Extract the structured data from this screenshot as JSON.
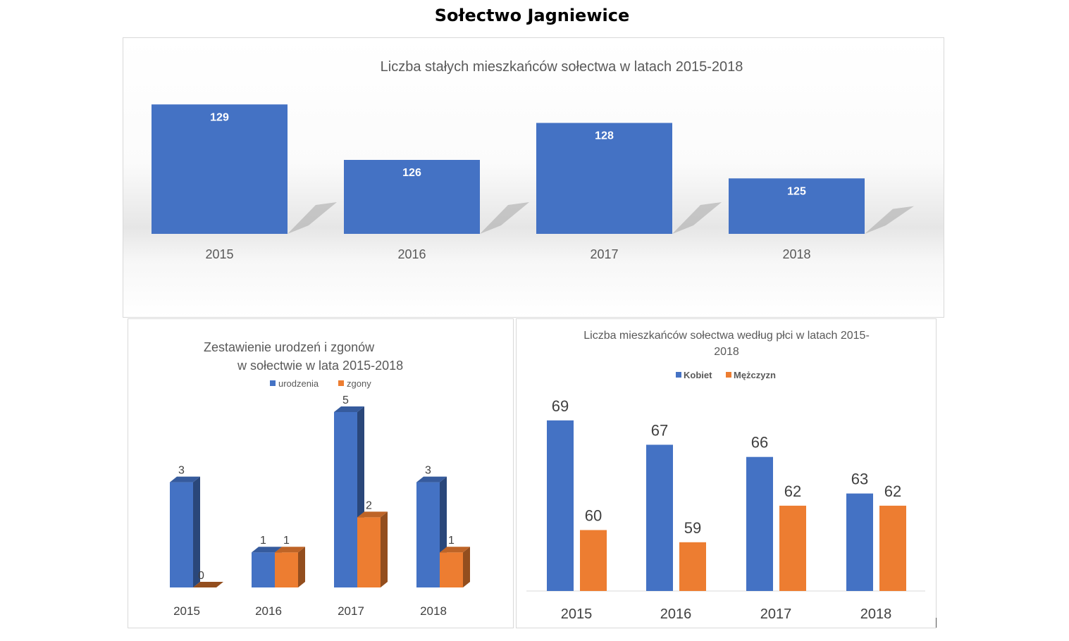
{
  "page": {
    "title": "Sołectwo Jagniewice"
  },
  "chart_data": [
    {
      "type": "bar",
      "title": "Liczba stałych mieszkańców sołectwa   w latach 2015-2018",
      "categories": [
        "2015",
        "2016",
        "2017",
        "2018"
      ],
      "values": [
        129,
        126,
        128,
        125
      ],
      "ylim": [
        122,
        130
      ],
      "grid": false,
      "colors": {
        "bar": "#4472c4",
        "shadow": "#a6a6a6"
      }
    },
    {
      "type": "bar",
      "title_lines": [
        "Zestawienie urodzeń i zgonów",
        "w sołectwie  w lata 2015-2018"
      ],
      "categories": [
        "2015",
        "2016",
        "2017",
        "2018"
      ],
      "series": [
        {
          "name": "urodzenia",
          "values": [
            3,
            1,
            5,
            3
          ],
          "color": "#4472c4"
        },
        {
          "name": "zgony",
          "values": [
            0,
            1,
            2,
            1
          ],
          "color": "#ed7d31"
        }
      ],
      "ylim": [
        0,
        5
      ],
      "legend": "top",
      "grid": false
    },
    {
      "type": "bar",
      "title_lines": [
        "Liczba mieszkańców sołectwa  według płci w latach 2015-",
        "2018"
      ],
      "categories": [
        "2015",
        "2016",
        "2017",
        "2018"
      ],
      "series": [
        {
          "name": "Kobiet",
          "values": [
            69,
            67,
            66,
            63
          ],
          "color": "#4472c4"
        },
        {
          "name": "Mężczyzn",
          "values": [
            60,
            59,
            62,
            62
          ],
          "color": "#ed7d31"
        }
      ],
      "ylim": [
        55,
        70
      ],
      "legend": "top",
      "grid": false
    }
  ]
}
